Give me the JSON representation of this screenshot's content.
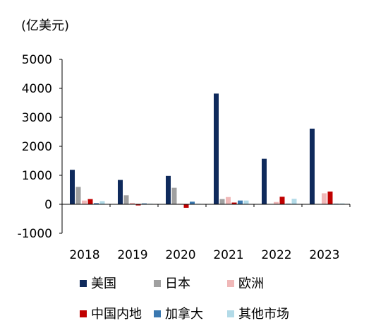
{
  "chart_data": {
    "type": "bar",
    "unit": "(亿美元)",
    "categories": [
      "2018",
      "2019",
      "2020",
      "2021",
      "2022",
      "2023"
    ],
    "ylim": [
      -1000,
      5000
    ],
    "yticks": [
      -1000,
      0,
      1000,
      2000,
      3000,
      4000,
      5000
    ],
    "grid": false,
    "legend_position": "bottom",
    "series": [
      {
        "name": "美国",
        "color": "#0f2a5c",
        "values": [
          1190,
          840,
          980,
          3820,
          1570,
          2610
        ]
      },
      {
        "name": "日本",
        "color": "#a0a0a0",
        "values": [
          600,
          310,
          570,
          180,
          0,
          0
        ]
      },
      {
        "name": "欧洲",
        "color": "#f0b8b8",
        "values": [
          130,
          50,
          20,
          250,
          80,
          380
        ]
      },
      {
        "name": "中国内地",
        "color": "#c00000",
        "values": [
          180,
          -40,
          -120,
          60,
          260,
          440
        ]
      },
      {
        "name": "加拿大",
        "color": "#3a78b0",
        "values": [
          40,
          30,
          90,
          130,
          20,
          20
        ]
      },
      {
        "name": "其他市场",
        "color": "#b3dbe8",
        "values": [
          110,
          20,
          20,
          130,
          190,
          30
        ]
      }
    ]
  }
}
